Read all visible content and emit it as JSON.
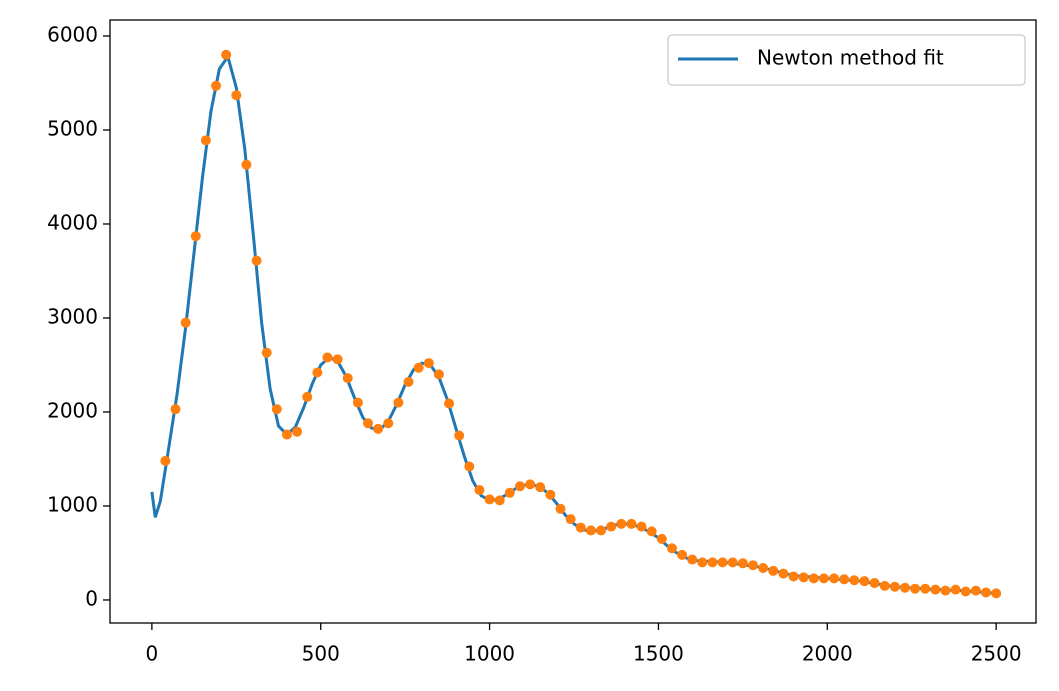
{
  "chart_data": {
    "type": "line",
    "xlim": [
      -124,
      2618
    ],
    "ylim": [
      -245,
      6170
    ],
    "xticks": [
      0,
      500,
      1000,
      1500,
      2000,
      2500
    ],
    "yticks": [
      0,
      1000,
      2000,
      3000,
      4000,
      5000,
      6000
    ],
    "legend": "upper right",
    "series": [
      {
        "name": "Newton method fit",
        "type": "line",
        "color": "#1f77b4",
        "x": [
          0,
          10,
          25,
          50,
          75,
          100,
          125,
          150,
          175,
          200,
          225,
          250,
          275,
          300,
          325,
          350,
          375,
          400,
          425,
          450,
          475,
          500,
          525,
          550,
          575,
          600,
          625,
          650,
          675,
          700,
          725,
          750,
          775,
          800,
          825,
          850,
          875,
          900,
          925,
          950,
          975,
          1000,
          1025,
          1050,
          1075,
          1100,
          1125,
          1150,
          1175,
          1200,
          1225,
          1250,
          1275,
          1300,
          1325,
          1350,
          1375,
          1400,
          1425,
          1450,
          1475,
          1500,
          1525,
          1550,
          1575,
          1600,
          1700,
          1800,
          1900,
          2000,
          2100,
          2200,
          2300,
          2400,
          2500
        ],
        "values": [
          1150,
          880,
          1050,
          1620,
          2200,
          2900,
          3700,
          4500,
          5200,
          5650,
          5780,
          5450,
          4800,
          3900,
          2950,
          2250,
          1850,
          1760,
          1840,
          2050,
          2300,
          2500,
          2580,
          2540,
          2380,
          2150,
          1940,
          1830,
          1810,
          1900,
          2080,
          2290,
          2450,
          2520,
          2500,
          2370,
          2130,
          1830,
          1530,
          1270,
          1110,
          1060,
          1070,
          1120,
          1180,
          1220,
          1230,
          1200,
          1130,
          1020,
          900,
          810,
          750,
          730,
          740,
          770,
          800,
          810,
          800,
          770,
          720,
          660,
          580,
          510,
          460,
          420,
          400,
          350,
          260,
          230,
          200,
          140,
          115,
          100,
          70
        ]
      },
      {
        "type": "scatter",
        "color": "#ff7f0e",
        "x": [
          40,
          70,
          100,
          130,
          160,
          190,
          220,
          250,
          280,
          310,
          340,
          370,
          400,
          430,
          460,
          490,
          520,
          550,
          580,
          610,
          640,
          670,
          700,
          730,
          760,
          790,
          820,
          850,
          880,
          910,
          940,
          970,
          1000,
          1030,
          1060,
          1090,
          1120,
          1150,
          1180,
          1210,
          1240,
          1270,
          1300,
          1330,
          1360,
          1390,
          1420,
          1450,
          1480,
          1510,
          1540,
          1570,
          1600,
          1630,
          1660,
          1690,
          1720,
          1750,
          1780,
          1810,
          1840,
          1870,
          1900,
          1930,
          1960,
          1990,
          2020,
          2050,
          2080,
          2110,
          2140,
          2170,
          2200,
          2230,
          2260,
          2290,
          2320,
          2350,
          2380,
          2410,
          2440,
          2470,
          2500
        ],
        "values": [
          1480,
          2030,
          2950,
          3870,
          4890,
          5470,
          5800,
          5370,
          4630,
          3610,
          2630,
          2030,
          1760,
          1790,
          2160,
          2420,
          2580,
          2560,
          2360,
          2100,
          1880,
          1820,
          1880,
          2100,
          2320,
          2470,
          2520,
          2400,
          2090,
          1750,
          1420,
          1170,
          1070,
          1060,
          1140,
          1210,
          1230,
          1200,
          1120,
          970,
          860,
          770,
          740,
          740,
          780,
          810,
          810,
          780,
          730,
          650,
          550,
          480,
          430,
          400,
          400,
          400,
          400,
          390,
          370,
          340,
          310,
          280,
          250,
          240,
          230,
          230,
          230,
          220,
          210,
          200,
          180,
          150,
          140,
          130,
          120,
          120,
          110,
          100,
          110,
          90,
          100,
          80,
          70
        ]
      }
    ]
  }
}
